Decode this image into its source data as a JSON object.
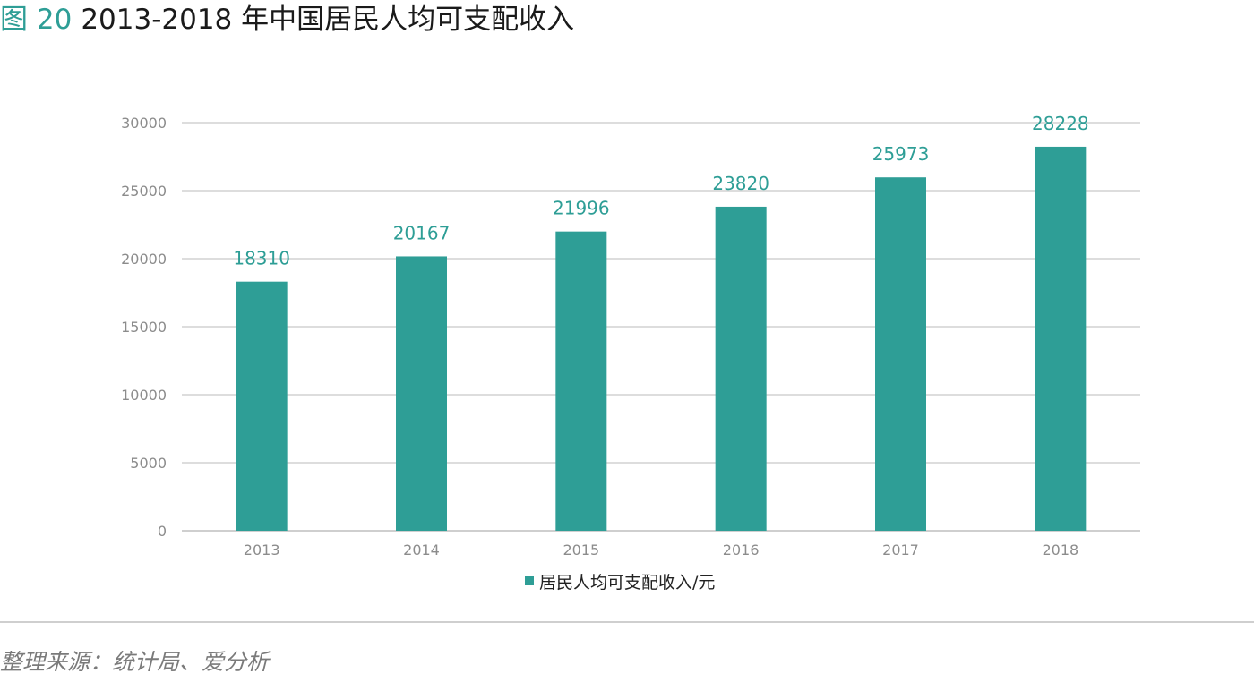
{
  "header": {
    "figure_label": "图 20",
    "title": "2013-2018 年中国居民人均可支配收入"
  },
  "colors": {
    "accent": "#2e9e96",
    "bar": "#2e9e96",
    "grid": "#dddddd",
    "tick": "#8c8c8c"
  },
  "chart_data": {
    "type": "bar",
    "categories": [
      "2013",
      "2014",
      "2015",
      "2016",
      "2017",
      "2018"
    ],
    "series": [
      {
        "name": "居民人均可支配收入/元",
        "values": [
          18310,
          20167,
          21996,
          23820,
          25973,
          28228
        ]
      }
    ],
    "data_labels": [
      "18310",
      "20167",
      "21996",
      "23820",
      "25973",
      "28228"
    ],
    "ylim": [
      0,
      30000
    ],
    "yticks": [
      "0",
      "5000",
      "10000",
      "15000",
      "20000",
      "25000",
      "30000"
    ],
    "grid": true,
    "legend_position": "bottom-center"
  },
  "legend": {
    "label": "居民人均可支配收入/元"
  },
  "footer": {
    "source": "整理来源：统计局、爱分析"
  }
}
